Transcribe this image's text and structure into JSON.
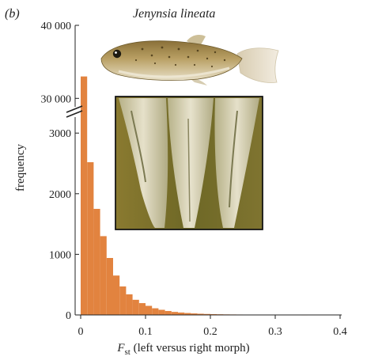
{
  "panel_label": "(b)",
  "chart_data": {
    "type": "bar",
    "title": "Jenynsia lineata",
    "xlabel_symbol": "F",
    "xlabel_subscript": "st",
    "xlabel_rest": " (left versus right morph)",
    "ylabel": "frequency",
    "bar_color": "#e2833f",
    "bin_width": 0.01,
    "x_ticks": [
      "0",
      "0.1",
      "0.2",
      "0.3",
      "0.4"
    ],
    "x_tick_values": [
      0,
      0.1,
      0.2,
      0.3,
      0.4
    ],
    "y_ticks_lower": [
      "0",
      "1000",
      "2000",
      "3000"
    ],
    "y_ticks_lower_values": [
      0,
      1000,
      2000,
      3000
    ],
    "y_ticks_upper": [
      "30 000",
      "40 000"
    ],
    "y_ticks_upper_values": [
      30000,
      40000
    ],
    "broken_axis": {
      "lower_range": [
        0,
        3650
      ],
      "upper_range": [
        27000,
        40000
      ]
    },
    "xlim": [
      -0.01,
      0.4
    ],
    "bins_left_edge": [
      0,
      0.01,
      0.02,
      0.03,
      0.04,
      0.05,
      0.06,
      0.07,
      0.08,
      0.09,
      0.1,
      0.11,
      0.12,
      0.13,
      0.14,
      0.15,
      0.16,
      0.17,
      0.18,
      0.19,
      0.2,
      0.21,
      0.22,
      0.23,
      0.24,
      0.25,
      0.26,
      0.27,
      0.28,
      0.29,
      0.3,
      0.31,
      0.32,
      0.33,
      0.34
    ],
    "values": [
      33000,
      2520,
      1750,
      1300,
      940,
      650,
      470,
      340,
      250,
      195,
      150,
      110,
      85,
      65,
      50,
      40,
      32,
      25,
      20,
      16,
      13,
      11,
      9,
      8,
      7,
      6,
      5,
      4,
      4,
      3,
      3,
      2,
      2,
      2,
      1
    ],
    "images": [
      "fish-photo",
      "gonopodium-photo"
    ]
  }
}
